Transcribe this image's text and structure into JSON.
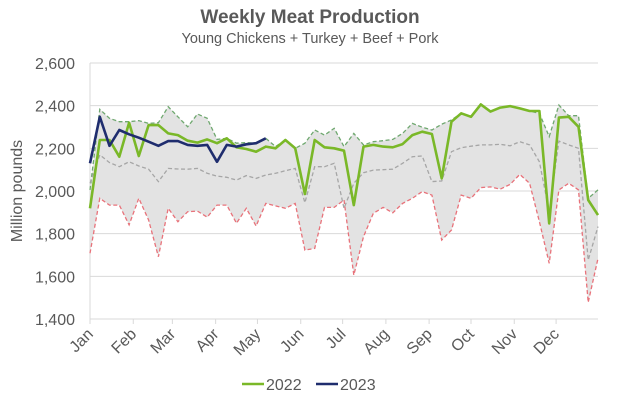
{
  "chart_data": {
    "type": "line",
    "title": "Weekly Meat Production",
    "subtitle": "Young Chickens + Turkey + Beef + Pork",
    "xlabel": "",
    "ylabel": "Million pounds",
    "ylim": [
      1400,
      2600
    ],
    "yticks": [
      1400,
      1600,
      1800,
      2000,
      2200,
      2400,
      2600
    ],
    "ytick_labels": [
      "1,400",
      "1,600",
      "1,800",
      "2,000",
      "2,200",
      "2,400",
      "2,600"
    ],
    "x_unit": "week",
    "xlim": [
      0,
      52
    ],
    "month_ticks": [
      {
        "label": "Jan",
        "week": 0
      },
      {
        "label": "Feb",
        "week": 4.43
      },
      {
        "label": "Mar",
        "week": 8.43
      },
      {
        "label": "Apr",
        "week": 12.86
      },
      {
        "label": "May",
        "week": 17.14
      },
      {
        "label": "Jun",
        "week": 21.57
      },
      {
        "label": "Jul",
        "week": 25.86
      },
      {
        "label": "Aug",
        "week": 30.29
      },
      {
        "label": "Sep",
        "week": 34.71
      },
      {
        "label": "Oct",
        "week": 39.0
      },
      {
        "label": "Nov",
        "week": 43.43
      },
      {
        "label": "Dec",
        "week": 47.71
      }
    ],
    "grid": true,
    "legend": {
      "placement": "bottom",
      "entries": [
        "2022",
        "2023"
      ]
    },
    "band": {
      "max": [
        2005,
        2383,
        2341,
        2325,
        2325,
        2330,
        2317,
        2320,
        2395,
        2348,
        2301,
        2361,
        2341,
        2242,
        2247,
        2224,
        2227,
        2224,
        2247,
        2208,
        2239,
        2200,
        2224,
        2286,
        2262,
        2294,
        2208,
        2270,
        2216,
        2231,
        2236,
        2242,
        2270,
        2317,
        2299,
        2286,
        2313,
        2333,
        2364,
        2348,
        2406,
        2372,
        2391,
        2398,
        2387,
        2375,
        2364,
        2255,
        2403,
        2353,
        2353,
        1966,
        2005
      ],
      "avg": [
        2036,
        2169,
        2133,
        2114,
        2137,
        2117,
        2102,
        2044,
        2106,
        2103,
        2102,
        2106,
        2083,
        2070,
        2064,
        2051,
        2072,
        2059,
        2075,
        2083,
        2095,
        2106,
        1945,
        2114,
        2114,
        2130,
        1919,
        2036,
        2086,
        2098,
        2100,
        2102,
        2130,
        2161,
        2164,
        2044,
        2047,
        2184,
        2203,
        2210,
        2216,
        2216,
        2219,
        2212,
        2231,
        2216,
        2137,
        1903,
        2234,
        2216,
        2200,
        1676,
        1833
      ],
      "min": [
        1708,
        1966,
        1934,
        1934,
        1841,
        1966,
        1864,
        1692,
        1919,
        1856,
        1903,
        1906,
        1877,
        1934,
        1934,
        1849,
        1919,
        1836,
        1942,
        1930,
        1919,
        1942,
        1723,
        1731,
        1923,
        1923,
        1958,
        1606,
        1786,
        1895,
        1923,
        1898,
        1942,
        1966,
        1997,
        1981,
        1770,
        1817,
        1981,
        1966,
        2016,
        2019,
        2009,
        2031,
        2078,
        2036,
        1856,
        1661,
        2005,
        2036,
        2005,
        1478,
        1684
      ]
    },
    "series": [
      {
        "name": "2022",
        "color": "#7ab828",
        "values": [
          1919,
          2239,
          2239,
          2161,
          2320,
          2164,
          2309,
          2309,
          2270,
          2262,
          2236,
          2227,
          2242,
          2224,
          2247,
          2205,
          2197,
          2184,
          2208,
          2200,
          2239,
          2200,
          1986,
          2239,
          2205,
          2200,
          2189,
          1934,
          2208,
          2216,
          2208,
          2205,
          2220,
          2262,
          2278,
          2267,
          2059,
          2325,
          2364,
          2348,
          2406,
          2372,
          2391,
          2398,
          2387,
          2375,
          2375,
          1848,
          2344,
          2348,
          2301,
          1958,
          1887
        ]
      },
      {
        "name": "2023",
        "color": "#1f2d6e",
        "values": [
          2130,
          2348,
          2212,
          2286,
          2266,
          2250,
          2231,
          2212,
          2234,
          2234,
          2216,
          2212,
          2216,
          2137,
          2216,
          2208,
          2219,
          2224,
          2247
        ]
      }
    ],
    "colors": {
      "band_fill": "#e3e3e3",
      "max_line": "#6fa86f",
      "avg_line": "#a6a6a6",
      "min_line": "#e8727a",
      "grid": "#d9d9d9",
      "text": "#595959"
    }
  }
}
